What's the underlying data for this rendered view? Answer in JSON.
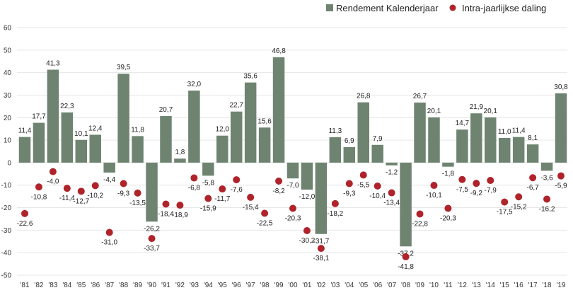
{
  "chart_data": {
    "type": "bar",
    "title": "",
    "xlabel": "",
    "ylabel": "",
    "ylim": [
      -50,
      60
    ],
    "yticks": [
      60,
      50,
      40,
      30,
      20,
      10,
      0,
      -10,
      -20,
      -30,
      -40,
      -50
    ],
    "grid": true,
    "legend_position": "top-right",
    "categories": [
      "'81",
      "'82",
      "'83",
      "'84",
      "'85",
      "'86",
      "'87",
      "'88",
      "'89",
      "'90",
      "'91",
      "'92",
      "'93",
      "'94",
      "'95",
      "'96",
      "'97",
      "'98",
      "'99",
      "'00",
      "'01",
      "'02",
      "'03",
      "'04",
      "'05",
      "'06",
      "'07",
      "'08",
      "'09",
      "'10",
      "'11",
      "'12",
      "'13",
      "'14",
      "'15",
      "'16",
      "'17",
      "'18",
      "'19"
    ],
    "series": [
      {
        "name": "Rendement Kalenderjaar",
        "kind": "bar",
        "color": "#6e8471",
        "values": [
          11.4,
          17.7,
          41.3,
          22.3,
          10.1,
          12.4,
          -4.4,
          39.5,
          11.8,
          -26.2,
          20.7,
          1.8,
          32.0,
          -5.8,
          12.0,
          22.7,
          35.6,
          15.6,
          46.8,
          -7.0,
          -12.0,
          -31.7,
          11.3,
          6.9,
          26.8,
          7.9,
          -1.2,
          -37.2,
          26.7,
          20.1,
          -1.8,
          14.7,
          21.9,
          20.1,
          11.0,
          11.4,
          8.1,
          -3.6,
          30.8
        ],
        "labels": [
          "11,4",
          "17,7",
          "41,3",
          "22,3",
          "10,1",
          "12,4",
          "-4,4",
          "39,5",
          "11,8",
          "-26,2",
          "20,7",
          "1,8",
          "32,0",
          "-5,8",
          "12,0",
          "22,7",
          "35,6",
          "15,6",
          "46,8",
          "-7,0",
          "-12,0",
          "-31,7",
          "11,3",
          "6,9",
          "26,8",
          "7,9",
          "-1,2",
          "-37,2",
          "26,7",
          "20,1",
          "-1,8",
          "14,7",
          "21,9",
          "20,1",
          "11,0",
          "11,4",
          "8,1",
          "-3,6",
          "30,8"
        ]
      },
      {
        "name": "Intra-jaarlijkse daling",
        "kind": "scatter",
        "color": "#b0232a",
        "values": [
          -22.6,
          -10.8,
          -4.0,
          -11.4,
          -12.7,
          -10.2,
          -31.0,
          -9.3,
          -13.5,
          -33.7,
          -18.4,
          -18.9,
          -6.8,
          -15.9,
          -11.7,
          -7.6,
          -15.4,
          -22.5,
          -8.2,
          -20.3,
          -30.2,
          -38.1,
          -18.2,
          -9.3,
          -5.5,
          -10.4,
          -13.4,
          -41.8,
          -22.8,
          -10.1,
          -20.3,
          -7.5,
          -9.2,
          -7.9,
          -17.5,
          -15.2,
          -6.7,
          -16.2,
          -5.9
        ],
        "labels": [
          "-22,6",
          "-10,8",
          "-4,0",
          "-11,4",
          "-12,7",
          "-10,2",
          "-31,0",
          "-9,3",
          "-13,5",
          "-33,7",
          "-18,4",
          "-18,9",
          "-6,8",
          "-15,9",
          "-11,7",
          "-7,6",
          "-15,4",
          "-22,5",
          "-8,2",
          "-20,3",
          "-30,2",
          "-38,1",
          "-18,2",
          "-9,3",
          "-5,5",
          "-10,4",
          "-13,4",
          "-41,8",
          "-22,8",
          "-10,1",
          "-20,3",
          "-7,5",
          "-9,2",
          "-7,9",
          "-17,5",
          "-15,2",
          "-6,7",
          "-16,2",
          "-5,9"
        ]
      }
    ]
  },
  "legend": {
    "items": [
      {
        "label": "Rendement Kalenderjaar",
        "marker": "square",
        "color": "#6e8471"
      },
      {
        "label": "Intra-jaarlijkse daling",
        "marker": "circle",
        "color": "#b0232a"
      }
    ]
  }
}
